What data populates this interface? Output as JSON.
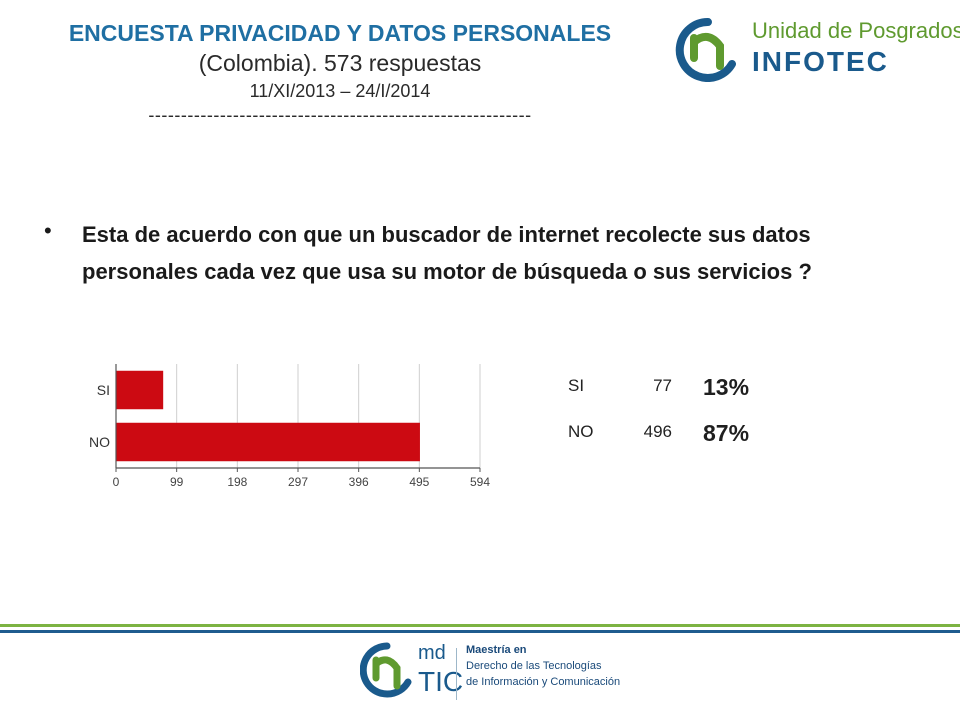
{
  "header": {
    "title": "ENCUESTA PRIVACIDAD Y DATOS PERSONALES",
    "subtitle": "(Colombia). 573 respuestas",
    "dates": "11/XI/2013 – 24/I/2014",
    "rule": "-----------------------------------------------------------"
  },
  "logo_top": {
    "line1": "Unidad de Posgrados",
    "line2": "INFOTEC",
    "icon": "infotec-logo-icon"
  },
  "question": {
    "bullet": "•",
    "text": "Esta de acuerdo con que un buscador de internet recolecte sus datos personales cada vez que usa su motor de búsqueda o sus servicios ?"
  },
  "colors": {
    "title": "#1f6fa3",
    "bar": "#cc0a12",
    "green": "#7cb342",
    "blue": "#1f5c8f"
  },
  "chart_data": {
    "type": "bar",
    "orientation": "horizontal",
    "categories": [
      "SI",
      "NO"
    ],
    "values": [
      77,
      496
    ],
    "xlim": [
      0,
      594
    ],
    "xticks": [
      "0",
      "99",
      "198",
      "297",
      "396",
      "495",
      "594"
    ],
    "grid": true,
    "title": "",
    "xlabel": "",
    "ylabel": ""
  },
  "stats": [
    {
      "label": "SI",
      "count": "77",
      "percent": "13%"
    },
    {
      "label": "NO",
      "count": "496",
      "percent": "87%"
    }
  ],
  "logo_bottom": {
    "md": "md",
    "tic": "TIC",
    "line1": "Maestría en",
    "line2": "Derecho de las Tecnologías",
    "line3": "de Información y Comunicación",
    "icon": "mdtic-logo-icon"
  }
}
